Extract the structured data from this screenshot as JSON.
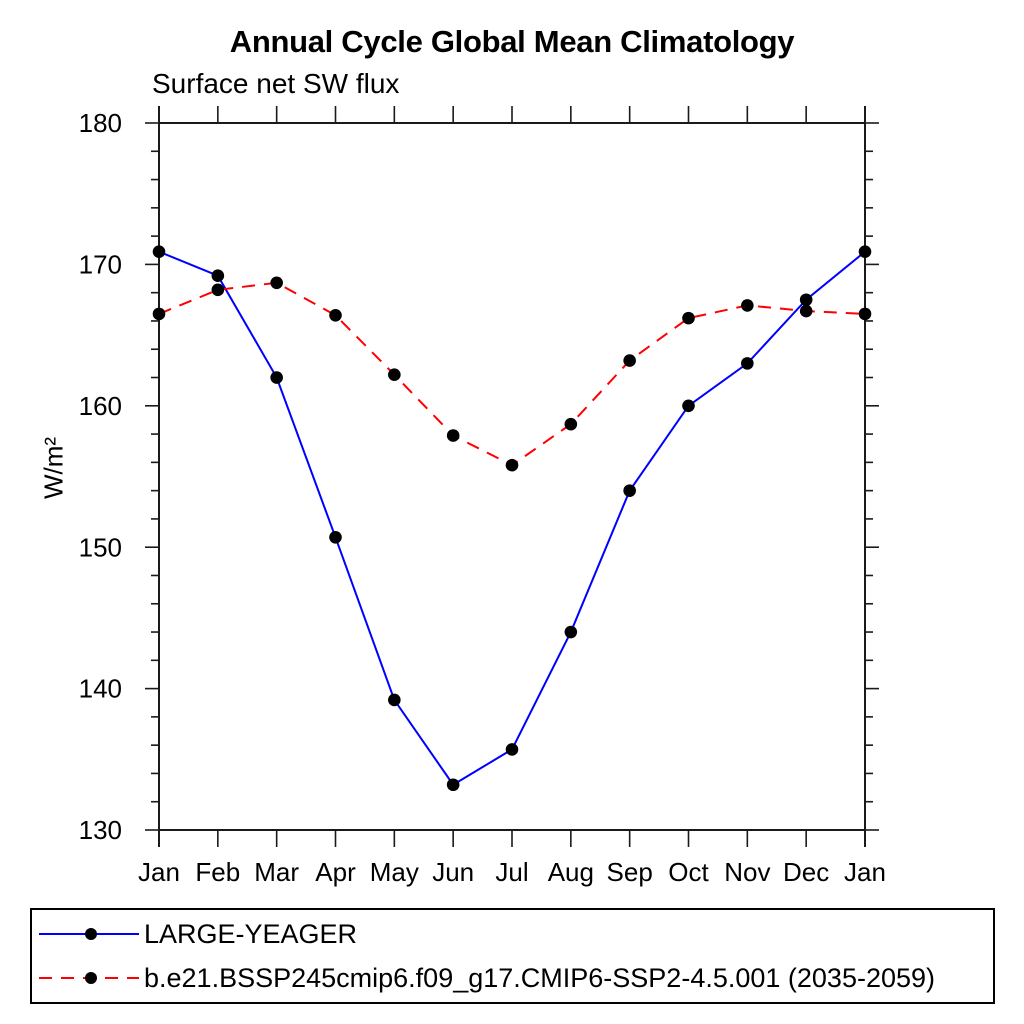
{
  "chart_data": {
    "type": "line",
    "title": "Annual Cycle Global Mean Climatology",
    "subtitle": "Surface net SW flux",
    "xlabel": "",
    "ylabel": "W/m²",
    "ylim": [
      130,
      180
    ],
    "yticks": [
      130,
      140,
      150,
      160,
      170,
      180
    ],
    "y_minor_step": 2,
    "grid": false,
    "legend_position": "bottom-left-box",
    "categories": [
      "Jan",
      "Feb",
      "Mar",
      "Apr",
      "May",
      "Jun",
      "Jul",
      "Aug",
      "Sep",
      "Oct",
      "Nov",
      "Dec",
      "Jan"
    ],
    "marker": "filled-circle",
    "marker_color": "#000000",
    "axis_color": "#1a1a1a",
    "background_color": "#ffffff",
    "series": [
      {
        "name": "LARGE-YEAGER",
        "color": "#0000ff",
        "line_style": "solid",
        "values": [
          170.9,
          169.2,
          162.0,
          150.7,
          139.2,
          133.2,
          135.7,
          144.0,
          154.0,
          160.0,
          163.0,
          167.5,
          170.9
        ]
      },
      {
        "name": "b.e21.BSSP245cmip6.f09_g17.CMIP6-SSP2-4.5.001 (2035-2059)",
        "color": "#ff0000",
        "line_style": "dashed",
        "values": [
          166.5,
          168.2,
          168.7,
          166.4,
          162.2,
          157.9,
          155.8,
          158.7,
          163.2,
          166.2,
          167.1,
          166.7,
          166.5
        ]
      }
    ]
  }
}
